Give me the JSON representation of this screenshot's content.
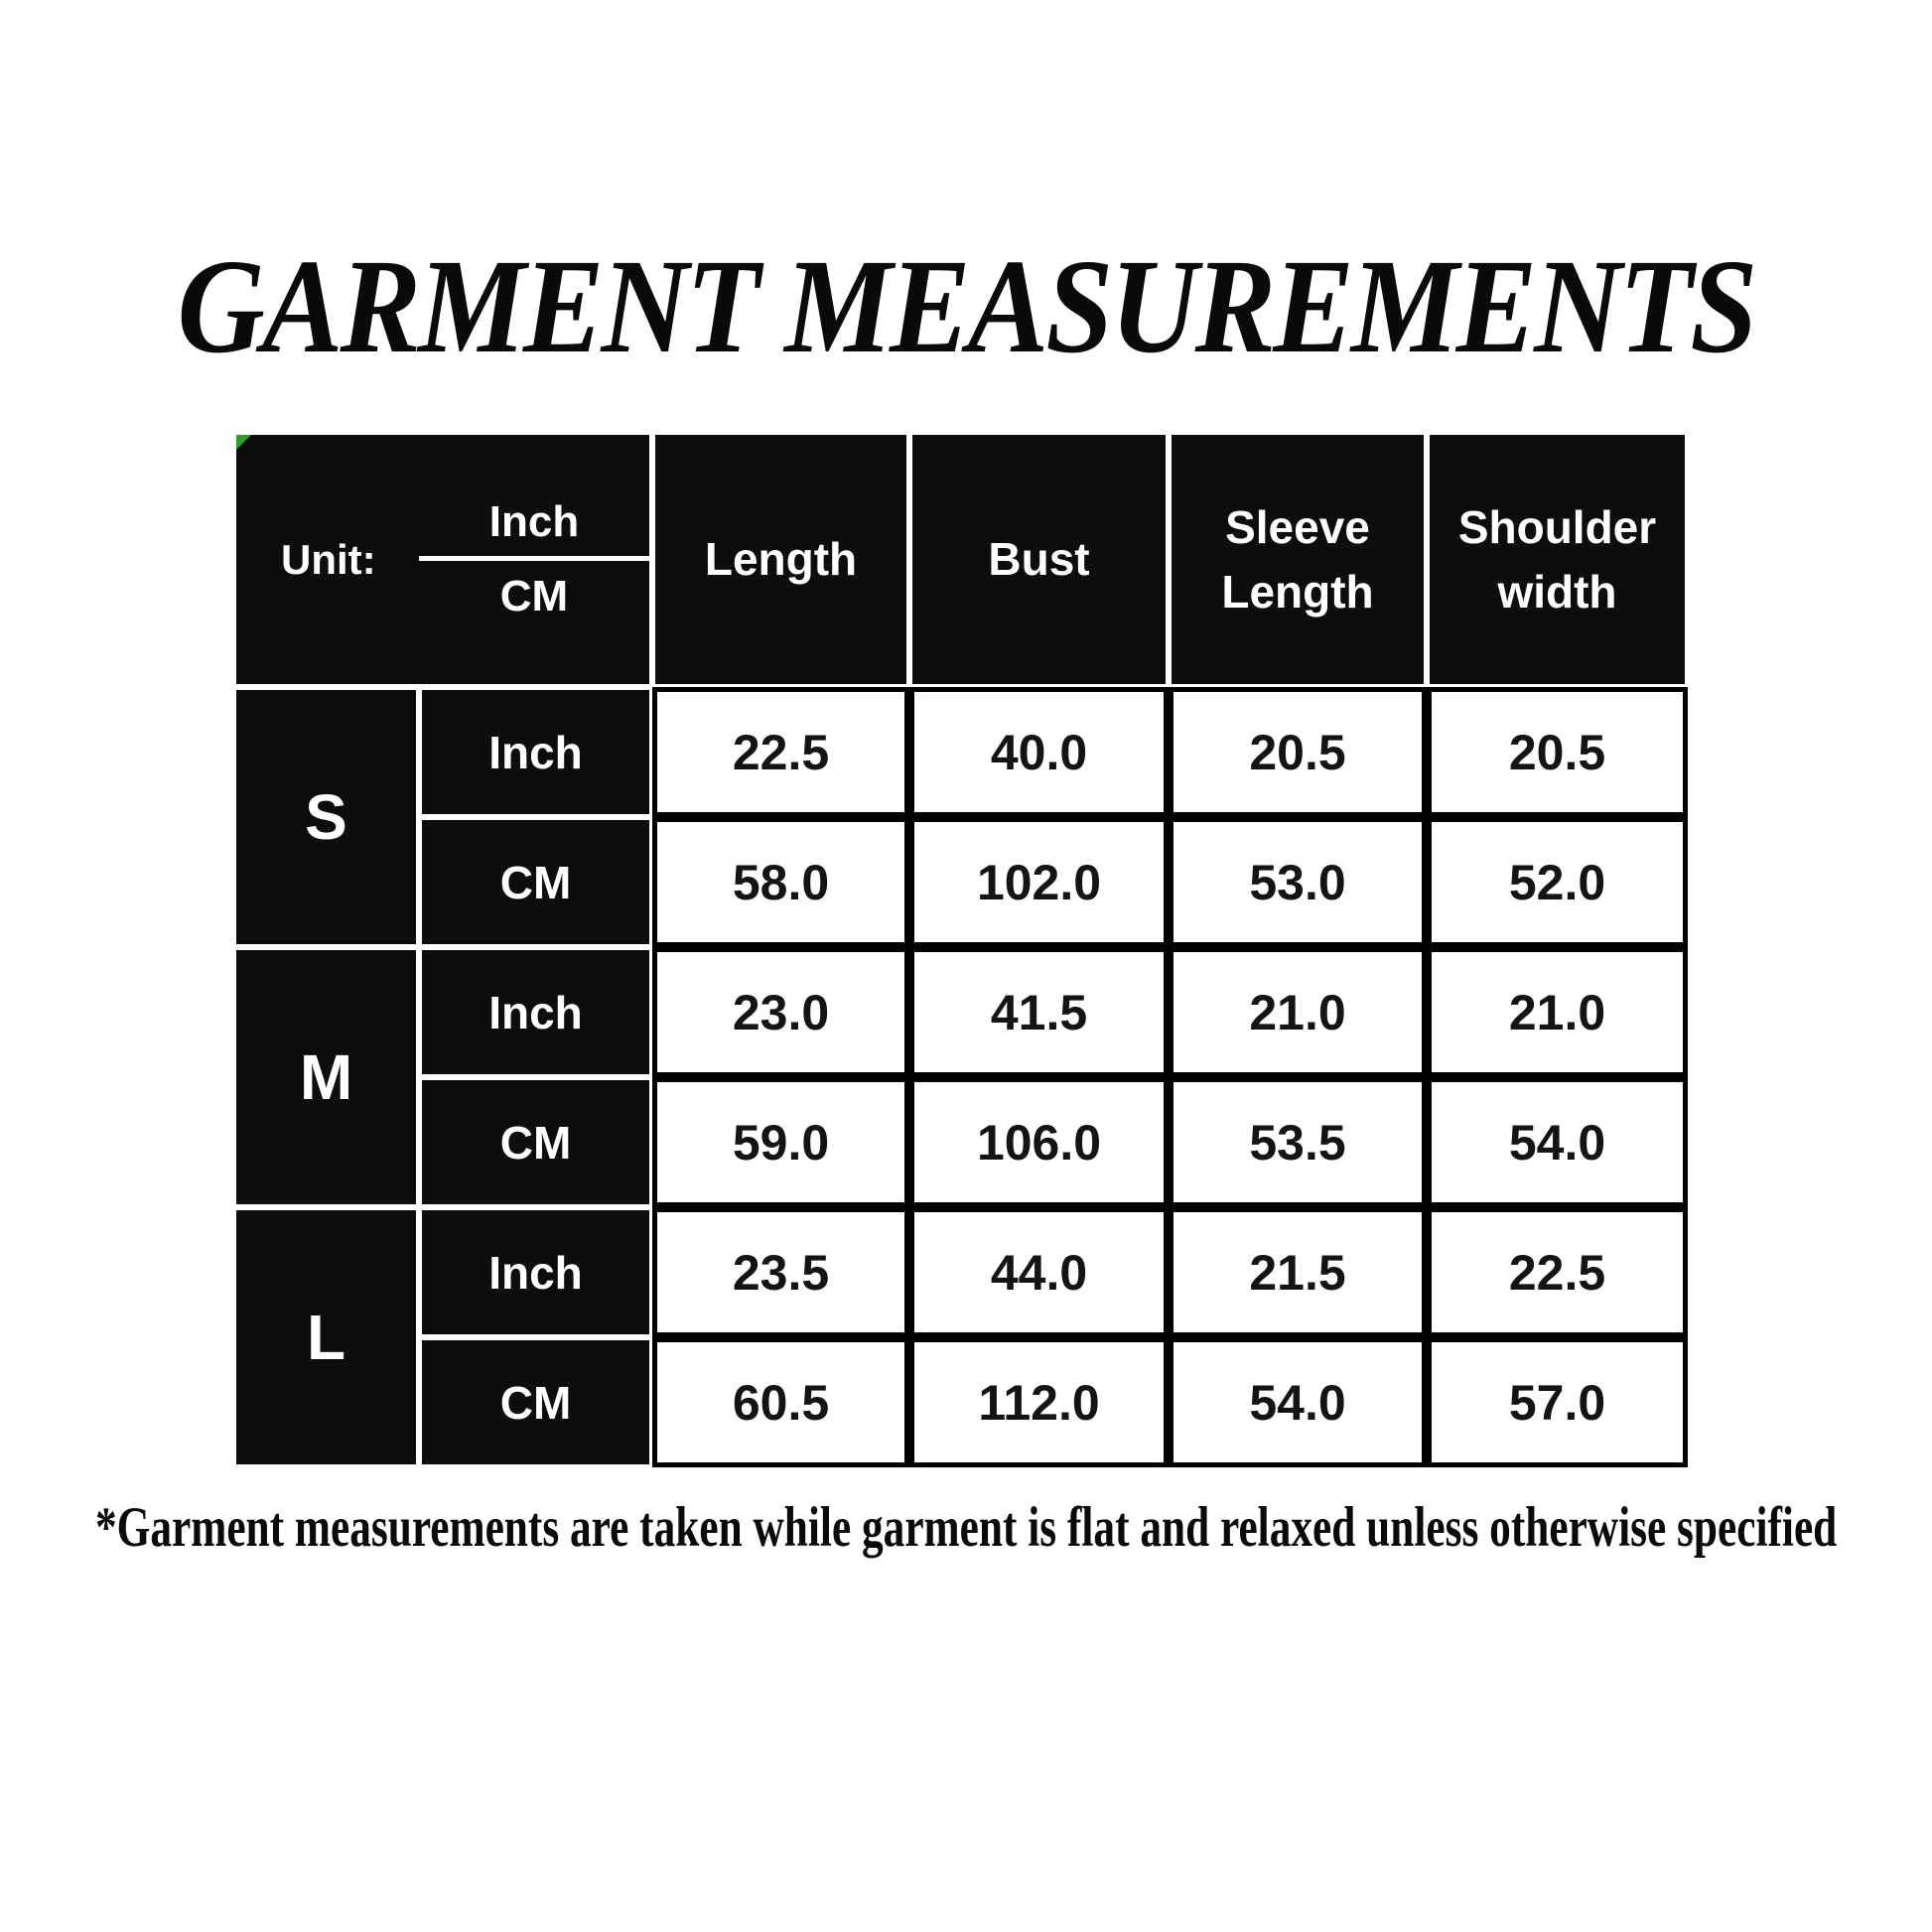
{
  "title": "GARMENT MEASUREMENTS",
  "table": {
    "unit_header": {
      "label": "Unit:",
      "fraction_top": "Inch",
      "fraction_bottom": "CM"
    },
    "measurement_columns": [
      "Length",
      "Bust",
      "Sleeve Length",
      "Shoulder width"
    ],
    "row_unit_labels": {
      "inch": "Inch",
      "cm": "CM"
    },
    "sizes": [
      {
        "label": "S",
        "inch": [
          "22.5",
          "40.0",
          "20.5",
          "20.5"
        ],
        "cm": [
          "58.0",
          "102.0",
          "53.0",
          "52.0"
        ]
      },
      {
        "label": "M",
        "inch": [
          "23.0",
          "41.5",
          "21.0",
          "21.0"
        ],
        "cm": [
          "59.0",
          "106.0",
          "53.5",
          "54.0"
        ]
      },
      {
        "label": "L",
        "inch": [
          "23.5",
          "44.0",
          "21.5",
          "22.5"
        ],
        "cm": [
          "60.5",
          "112.0",
          "54.0",
          "57.0"
        ]
      }
    ]
  },
  "footnote": "*Garment measurements are taken while garment is flat and relaxed unless otherwise specified",
  "colors": {
    "cell_dark": "#0d0d0d",
    "text_on_dark": "#ffffff",
    "text_on_light": "#141414",
    "corner_marker_green": "#2f9e2f",
    "background": "#ffffff"
  }
}
